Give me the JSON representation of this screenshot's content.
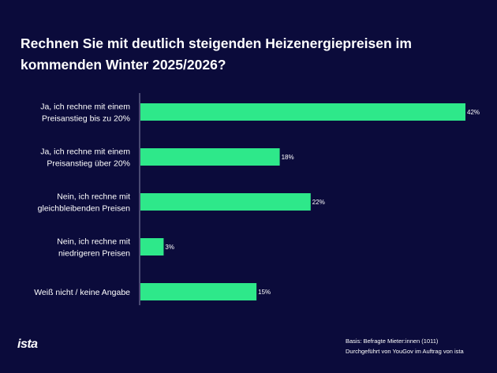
{
  "chart_data": {
    "type": "bar",
    "orientation": "horizontal",
    "title": "Rechnen Sie mit deutlich steigenden Heizenergiepreisen im kommenden Winter 2025/2026?",
    "categories": [
      [
        "Ja, ich rechne mit einem",
        "Preisanstieg bis zu 20%"
      ],
      [
        "Ja, ich rechne mit einem",
        "Preisanstieg über 20%"
      ],
      [
        "Nein, ich rechne mit",
        "gleichbleibenden Preisen"
      ],
      [
        "Nein, ich rechne mit",
        "niedrigeren Preisen"
      ],
      [
        "Weiß nicht / keine Angabe"
      ]
    ],
    "values": [
      42,
      18,
      22,
      3,
      15
    ],
    "value_labels": [
      "42%",
      "18%",
      "22%",
      "3%",
      "15%"
    ],
    "unit": "%",
    "xlim": [
      0,
      42
    ],
    "bar_color": "#2ee88a",
    "axis_color": "#8a8aa8"
  },
  "footer": {
    "basis": "Basis: Befragte Mieter:innen (1011)",
    "source": "Durchgeführt von YouGov im Auftrag von ista",
    "logo": "ista"
  }
}
